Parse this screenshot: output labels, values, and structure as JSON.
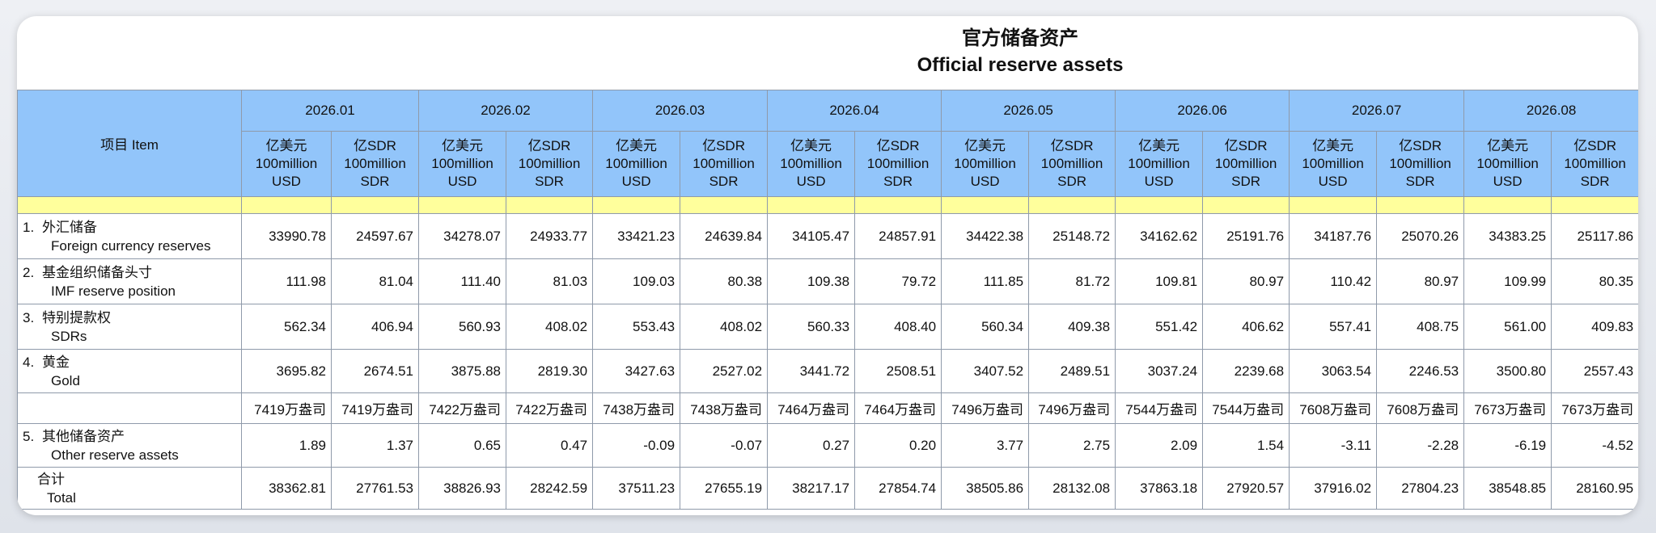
{
  "title": {
    "zh": "官方储备资产",
    "en": "Official reserve assets"
  },
  "item_header": "项目  Item",
  "units": {
    "usd": [
      "亿美元",
      "100million",
      "USD"
    ],
    "sdr": [
      "亿SDR",
      "100million",
      "SDR"
    ]
  },
  "months": [
    "2026.01",
    "2026.02",
    "2026.03",
    "2026.04",
    "2026.05",
    "2026.06",
    "2026.07",
    "2026.08"
  ],
  "rows": [
    {
      "num": "1.",
      "zh": "外汇储备",
      "en": "Foreign currency reserves",
      "values": [
        "33990.78",
        "24597.67",
        "34278.07",
        "24933.77",
        "33421.23",
        "24639.84",
        "34105.47",
        "24857.91",
        "34422.38",
        "25148.72",
        "34162.62",
        "25191.76",
        "34187.76",
        "25070.26",
        "34383.25",
        "25117.86"
      ]
    },
    {
      "num": "2.",
      "zh": "基金组织储备头寸",
      "en": "IMF reserve position",
      "values": [
        "111.98",
        "81.04",
        "111.40",
        "81.03",
        "109.03",
        "80.38",
        "109.38",
        "79.72",
        "111.85",
        "81.72",
        "109.81",
        "80.97",
        "110.42",
        "80.97",
        "109.99",
        "80.35"
      ]
    },
    {
      "num": "3.",
      "zh": "特别提款权",
      "en": "SDRs",
      "values": [
        "562.34",
        "406.94",
        "560.93",
        "408.02",
        "553.43",
        "408.02",
        "560.33",
        "408.40",
        "560.34",
        "409.38",
        "551.42",
        "406.62",
        "557.41",
        "408.75",
        "561.00",
        "409.83"
      ]
    },
    {
      "num": "4.",
      "zh": "黄金",
      "en": "Gold",
      "values": [
        "3695.82",
        "2674.51",
        "3875.88",
        "2819.30",
        "3427.63",
        "2527.02",
        "3441.72",
        "2508.51",
        "3407.52",
        "2489.51",
        "3037.24",
        "2239.68",
        "3063.54",
        "2246.53",
        "3500.80",
        "2557.43"
      ]
    },
    {
      "num": "",
      "zh": "",
      "en": "",
      "values": [
        "7419万盎司",
        "7419万盎司",
        "7422万盎司",
        "7422万盎司",
        "7438万盎司",
        "7438万盎司",
        "7464万盎司",
        "7464万盎司",
        "7496万盎司",
        "7496万盎司",
        "7544万盎司",
        "7544万盎司",
        "7608万盎司",
        "7608万盎司",
        "7673万盎司",
        "7673万盎司"
      ]
    },
    {
      "num": "5.",
      "zh": "其他储备资产",
      "en": "Other reserve assets",
      "values": [
        "1.89",
        "1.37",
        "0.65",
        "0.47",
        "-0.09",
        "-0.07",
        "0.27",
        "0.20",
        "3.77",
        "2.75",
        "2.09",
        "1.54",
        "-3.11",
        "-2.28",
        "-6.19",
        "-4.52"
      ]
    },
    {
      "num": "",
      "zh": "合计",
      "en": "Total",
      "values": [
        "38362.81",
        "27761.53",
        "38826.93",
        "28242.59",
        "37511.23",
        "27655.19",
        "38217.17",
        "27854.74",
        "38505.86",
        "28132.08",
        "37863.18",
        "27920.57",
        "37916.02",
        "27804.23",
        "38548.85",
        "28160.95"
      ]
    }
  ]
}
